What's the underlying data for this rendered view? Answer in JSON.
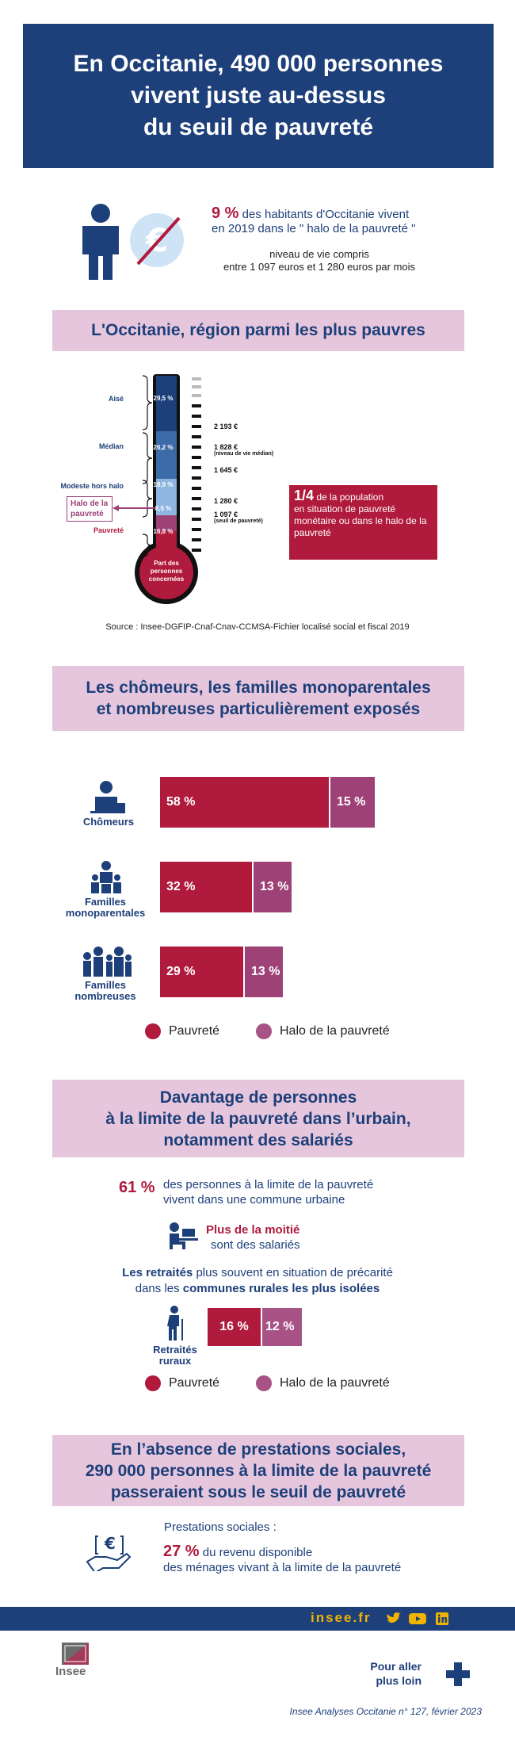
{
  "header": {
    "title_line1": "En Occitanie, 490 000 personnes",
    "title_line2": "vivent juste au-dessus",
    "title_line3": "du seuil de pauvreté"
  },
  "intro": {
    "pct": "9 %",
    "text1": "des habitants d'Occitanie vivent",
    "text2": "en 2019 dans le \" halo de la pauvreté \"",
    "sub1": "niveau de vie compris",
    "sub2": "entre 1 097 euros et 1 280 euros par mois"
  },
  "section1": {
    "title": "L'Occitanie, région parmi les plus pauvres",
    "labels": {
      "aise": "Aisé",
      "median": "Médian",
      "modeste": "Modeste hors halo",
      "halo": "Halo de la pauvreté",
      "pauvrete": "Pauvreté"
    },
    "shares": {
      "aise": "29,5 %",
      "median": "26,2 %",
      "modeste": "18,9 %",
      "halo": "8,5 %",
      "pauvrete": "16,8 %"
    },
    "bulb_text": "Part des personnes concernées",
    "euros": {
      "e1": "2 193 €",
      "e2": "1 828 €",
      "e2_note": "(niveau de vie médian)",
      "e3": "1 645 €",
      "e4": "1 280 €",
      "e5": "1 097 €",
      "e5_note": "(seuil de pauvreté)"
    },
    "callout_big": "1/4",
    "callout_text1": "de la population",
    "callout_text2": "en situation de pauvreté monétaire ou dans le halo de la pauvreté",
    "source": "Source : Insee-DGFIP-Cnaf-Cnav-CCMSA-Fichier localisé social et fiscal 2019"
  },
  "section2": {
    "title_line1": "Les chômeurs, les familles monoparentales",
    "title_line2": "et nombreuses particulièrement exposés"
  },
  "chart_data": {
    "type": "bar",
    "categories": [
      "Chômeurs",
      "Familles monoparentales",
      "Familles nombreuses"
    ],
    "series": [
      {
        "name": "Pauvreté",
        "values": [
          58,
          32,
          29
        ],
        "labels": [
          "58 %",
          "32 %",
          "29 %"
        ],
        "color": "#b01a3c"
      },
      {
        "name": "Halo de la pauvreté",
        "values": [
          15,
          13,
          13
        ],
        "labels": [
          "15 %",
          "13 %",
          "13 %"
        ],
        "color": "#9d4176"
      }
    ],
    "stacked": true,
    "legend": [
      "Pauvreté",
      "Halo de la pauvreté"
    ]
  },
  "cat_labels": {
    "c1": "Chômeurs",
    "c2a": "Familles",
    "c2b": "monoparentales",
    "c3a": "Familles",
    "c3b": "nombreuses"
  },
  "legend": {
    "pov": "Pauvreté",
    "halo": "Halo de la pauvreté"
  },
  "section3": {
    "title_line1": "Davantage de personnes",
    "title_line2": "à la limite de la pauvreté dans l’urbain,",
    "title_line3": "notamment des salariés",
    "pct": "61 %",
    "urban1": "des personnes à la limite de la pauvreté",
    "urban2": "vivent dans une commune urbaine",
    "salaries_bold": "Plus de la moitié",
    "salaries_rest": "sont des salariés",
    "retraites_bold1": "Les retraités",
    "retraites_text1": " plus souvent en situation de précarité",
    "retraites_text2": "dans les ",
    "retraites_bold2": "communes rurales les plus isolées",
    "ruraux_a": "Retraités",
    "ruraux_b": "ruraux",
    "bar_pov": "16 %",
    "bar_halo": "12 %",
    "values": {
      "pauvrete": 16,
      "halo": 12
    }
  },
  "section4": {
    "title_line1": "En l’absence de prestations sociales,",
    "title_line2": "290 000 personnes à la limite de la pauvreté",
    "title_line3": "passeraient sous le seuil de pauvreté",
    "label": "Prestations sociales :",
    "pct": "27 %",
    "text1": "du revenu disponible",
    "text2": "des ménages vivant à la limite de la pauvreté"
  },
  "footer": {
    "site": "insee.fr",
    "more1": "Pour aller",
    "more2": "plus loin",
    "ref": "Insee Analyses Occitanie n° 127,  février 2023",
    "logo": "Insee"
  },
  "colors": {
    "navy": "#1d3f7a",
    "red": "#b01a3c",
    "plum": "#9d4176",
    "pink": "#e6c6dc",
    "gold": "#f0b400"
  }
}
